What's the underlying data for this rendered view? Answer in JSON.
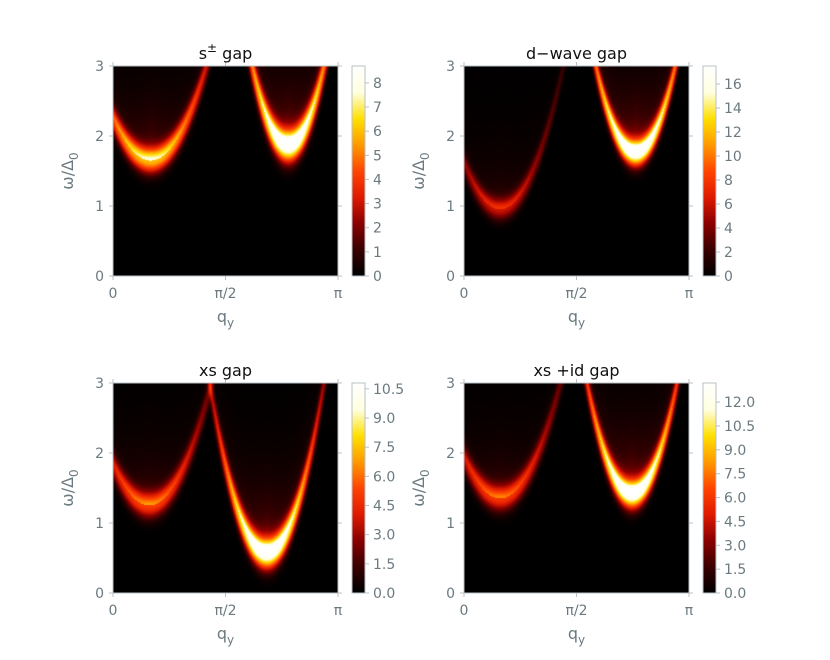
{
  "colors": {
    "colormap": [
      "#000000",
      "#3a0000",
      "#8b0000",
      "#e01a00",
      "#ff4500",
      "#ff9a00",
      "#ffe000",
      "#ffffe0",
      "#ffffff"
    ],
    "axis_text": "#6b7a80",
    "title_text": "#111111"
  },
  "chart_data": [
    {
      "type": "heatmap",
      "title": "s± gap",
      "xlabel": "qy",
      "ylabel": "ω/Δ0",
      "x_ticks": [
        "0",
        "π/2",
        "π"
      ],
      "y_ticks": [
        "0",
        "1",
        "2",
        "3"
      ],
      "xlim": [
        0,
        3.1416
      ],
      "ylim": [
        0,
        3
      ],
      "colorbar": {
        "min": 0,
        "max": 8.7,
        "ticks": [
          "0",
          "1",
          "2",
          "3",
          "4",
          "5",
          "6",
          "7",
          "8"
        ]
      },
      "features": [
        {
          "shape": "parabola",
          "x_center": 0.52,
          "y_min": 1.65,
          "curvature": 2.2,
          "max_intensity": 6.0,
          "width": 0.13
        },
        {
          "shape": "parabola",
          "x_center": 2.45,
          "y_min": 1.85,
          "curvature": 4.5,
          "max_intensity": 8.7,
          "width": 0.16
        }
      ]
    },
    {
      "type": "heatmap",
      "title": "d−wave gap",
      "xlabel": "qy",
      "ylabel": "ω/Δ0",
      "x_ticks": [
        "0",
        "π/2",
        "π"
      ],
      "y_ticks": [
        "0",
        "1",
        "2",
        "3"
      ],
      "xlim": [
        0,
        3.1416
      ],
      "ylim": [
        0,
        3
      ],
      "colorbar": {
        "min": 0,
        "max": 17.5,
        "ticks": [
          "0",
          "2",
          "4",
          "6",
          "8",
          "10",
          "12",
          "14",
          "16"
        ]
      },
      "features": [
        {
          "shape": "parabola",
          "x_center": 0.5,
          "y_min": 0.95,
          "curvature": 2.6,
          "max_intensity": 6.0,
          "width": 0.11
        },
        {
          "shape": "parabola",
          "x_center": 2.4,
          "y_min": 1.75,
          "curvature": 4.0,
          "max_intensity": 17.5,
          "width": 0.13
        }
      ]
    },
    {
      "type": "heatmap",
      "title": "xs gap",
      "xlabel": "qy",
      "ylabel": "ω/Δ0",
      "x_ticks": [
        "0",
        "π/2",
        "π"
      ],
      "y_ticks": [
        "0",
        "1",
        "2",
        "3"
      ],
      "xlim": [
        0,
        3.1416
      ],
      "ylim": [
        0,
        3
      ],
      "colorbar": {
        "min": 0,
        "max": 10.8,
        "ticks": [
          "0.0",
          "1.5",
          "3.0",
          "4.5",
          "6.0",
          "7.5",
          "9.0",
          "10.5"
        ]
      },
      "features": [
        {
          "shape": "parabola",
          "x_center": 0.5,
          "y_min": 1.25,
          "curvature": 2.3,
          "max_intensity": 5.2,
          "width": 0.13
        },
        {
          "shape": "parabola",
          "x_center": 2.15,
          "y_min": 0.55,
          "curvature": 3.8,
          "max_intensity": 10.8,
          "width": 0.15
        }
      ]
    },
    {
      "type": "heatmap",
      "title": "xs +id gap",
      "xlabel": "qy",
      "ylabel": "ω/Δ0",
      "x_ticks": [
        "0",
        "π/2",
        "π"
      ],
      "y_ticks": [
        "0",
        "1",
        "2",
        "3"
      ],
      "xlim": [
        0,
        3.1416
      ],
      "ylim": [
        0,
        3
      ],
      "colorbar": {
        "min": 0,
        "max": 13.2,
        "ticks": [
          "0.0",
          "1.5",
          "3.0",
          "4.5",
          "6.0",
          "7.5",
          "9.0",
          "10.5",
          "12.0"
        ]
      },
      "features": [
        {
          "shape": "parabola",
          "x_center": 0.5,
          "y_min": 1.35,
          "curvature": 2.3,
          "max_intensity": 6.0,
          "width": 0.13
        },
        {
          "shape": "parabola",
          "x_center": 2.35,
          "y_min": 1.4,
          "curvature": 4.0,
          "max_intensity": 13.2,
          "width": 0.14
        }
      ]
    }
  ]
}
